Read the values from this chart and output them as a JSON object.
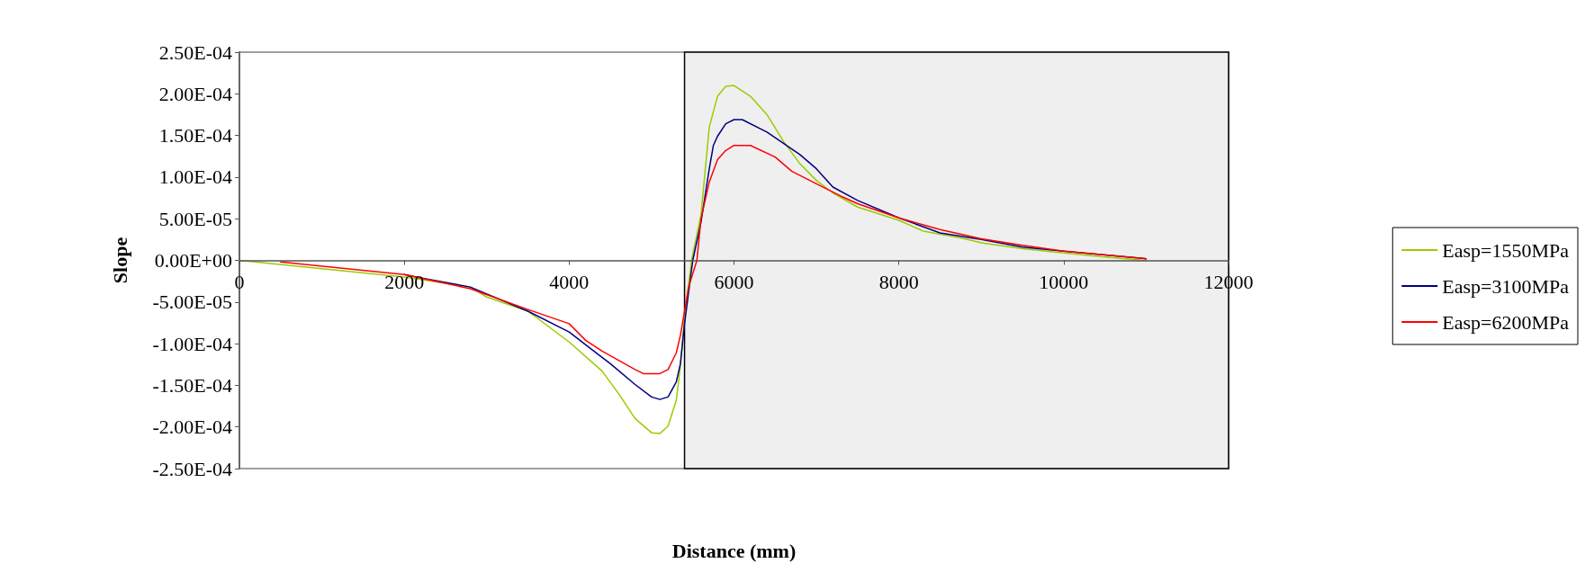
{
  "chart_data": {
    "type": "line",
    "xlabel": "Distance (mm)",
    "ylabel": "Slope",
    "xlim": [
      0,
      12000
    ],
    "xticks": [
      0,
      2000,
      4000,
      6000,
      8000,
      10000,
      12000
    ],
    "ylim": [
      -0.00025,
      0.00025
    ],
    "yticks": [
      {
        "value": -0.00025,
        "label": "-2.50E-04"
      },
      {
        "value": -0.0002,
        "label": "-2.00E-04"
      },
      {
        "value": -0.00015,
        "label": "-1.50E-04"
      },
      {
        "value": -0.0001,
        "label": "-1.00E-04"
      },
      {
        "value": -5e-05,
        "label": "-5.00E-05"
      },
      {
        "value": 0,
        "label": "0.00E+00"
      },
      {
        "value": 5e-05,
        "label": "5.00E-05"
      },
      {
        "value": 0.0001,
        "label": "1.00E-04"
      },
      {
        "value": 0.00015,
        "label": "1.50E-04"
      },
      {
        "value": 0.0002,
        "label": "2.00E-04"
      },
      {
        "value": 0.00025,
        "label": "2.50E-04"
      }
    ],
    "grid": false,
    "legend": "right",
    "marker": "none",
    "line_style": "solid",
    "bands": [
      {
        "axis": "x",
        "from": 5400,
        "to": 12000,
        "color": "#efefef"
      }
    ],
    "series": [
      {
        "name": "Easp=1550MPa",
        "color": "#99cc00",
        "x": [
          0,
          2000,
          2800,
          3000,
          3500,
          4000,
          4400,
          4600,
          4800,
          5000,
          5100,
          5200,
          5300,
          5350,
          5400,
          5485,
          5600,
          5700,
          5800,
          5900,
          6000,
          6200,
          6400,
          6600,
          6800,
          7000,
          7200,
          7500,
          8000,
          8300,
          8800,
          9000,
          9500,
          10000,
          10500,
          11000
        ],
        "values": [
          0,
          -2e-05,
          -3.2e-05,
          -4.4e-05,
          -6.1e-05,
          -9.8e-05,
          -0.000133,
          -0.00016,
          -0.00019,
          -0.000207,
          -0.000208,
          -0.000199,
          -0.000168,
          -0.000127,
          -6.8e-05,
          0,
          5.5e-05,
          0.00016,
          0.000197,
          0.000209,
          0.00021,
          0.000197,
          0.000175,
          0.000143,
          0.000116,
          9.6e-05,
          8.1e-05,
          6.4e-05,
          4.8e-05,
          3.5e-05,
          2.6e-05,
          2.1e-05,
          1.4e-05,
          8.8e-06,
          4e-06,
          0
        ]
      },
      {
        "name": "Easp=3100MPa",
        "color": "#000080",
        "x": [
          2000,
          2200,
          2800,
          3500,
          4000,
          4300,
          4500,
          4800,
          5000,
          5100,
          5200,
          5300,
          5350,
          5400,
          5500,
          5600,
          5700,
          5750,
          5800,
          5900,
          6000,
          6100,
          6400,
          6800,
          7000,
          7200,
          7500,
          8000,
          8500,
          9000,
          9500,
          10000,
          11000
        ],
        "values": [
          -1.7e-05,
          -2.1e-05,
          -3.2e-05,
          -6.1e-05,
          -8.6e-05,
          -0.000109,
          -0.000124,
          -0.000149,
          -0.000164,
          -0.000167,
          -0.000164,
          -0.000146,
          -0.000124,
          -7.6e-05,
          0,
          4.6e-05,
          0.00011,
          0.000138,
          0.000149,
          0.000164,
          0.000169,
          0.000169,
          0.000154,
          0.000127,
          0.00011,
          8.8e-05,
          7.2e-05,
          5.1e-05,
          3.3e-05,
          2.5e-05,
          1.6e-05,
          1.1e-05,
          2e-06
        ]
      },
      {
        "name": "Easp=6200MPa",
        "color": "#ff0000",
        "x": [
          500,
          2000,
          2800,
          3500,
          4000,
          4200,
          4400,
          4600,
          4800,
          4900,
          5100,
          5200,
          5300,
          5350,
          5450,
          5550,
          5600,
          5700,
          5800,
          5900,
          6000,
          6200,
          6500,
          6700,
          7000,
          7300,
          7500,
          8000,
          8500,
          9000,
          9500,
          10000,
          11000
        ],
        "values": [
          -2e-06,
          -1.7e-05,
          -3.4e-05,
          -5.9e-05,
          -7.6e-05,
          -9.6e-05,
          -0.000109,
          -0.00012,
          -0.000131,
          -0.000136,
          -0.000136,
          -0.000131,
          -0.000111,
          -9e-05,
          -3.2e-05,
          0,
          5e-05,
          9.4e-05,
          0.000121,
          0.000132,
          0.000138,
          0.000138,
          0.000124,
          0.000107,
          9.2e-05,
          7.7e-05,
          6.8e-05,
          5.1e-05,
          3.7e-05,
          2.6e-05,
          1.8e-05,
          1.1e-05,
          2e-06
        ]
      }
    ]
  }
}
